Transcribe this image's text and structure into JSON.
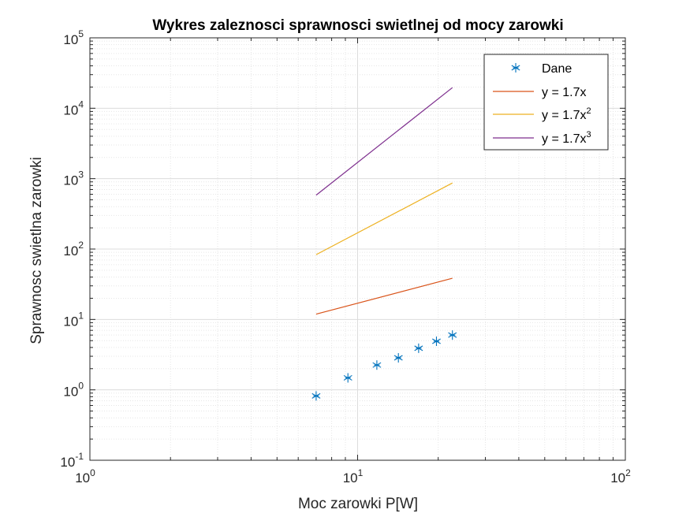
{
  "chart_data": {
    "type": "line",
    "title": "Wykres zaleznosci sprawnosci swietlnej od mocy zarowki",
    "xlabel": "Moc zarowki P[W]",
    "ylabel": "Sprawnosc swietlna zarowki",
    "xscale": "log",
    "yscale": "log",
    "xlim": [
      1,
      100
    ],
    "ylim": [
      0.1,
      100000
    ],
    "grid": true,
    "x_ticks": [
      {
        "base": "10",
        "exp": "0",
        "value": 1
      },
      {
        "base": "10",
        "exp": "1",
        "value": 10
      },
      {
        "base": "10",
        "exp": "2",
        "value": 100
      }
    ],
    "y_ticks": [
      {
        "base": "10",
        "exp": "-1",
        "value": 0.1
      },
      {
        "base": "10",
        "exp": "0",
        "value": 1
      },
      {
        "base": "10",
        "exp": "1",
        "value": 10
      },
      {
        "base": "10",
        "exp": "2",
        "value": 100
      },
      {
        "base": "10",
        "exp": "3",
        "value": 1000
      },
      {
        "base": "10",
        "exp": "4",
        "value": 10000
      },
      {
        "base": "10",
        "exp": "5",
        "value": 100000
      }
    ],
    "legend_position": "top-right",
    "series": [
      {
        "name": "Dane",
        "style": "marker",
        "marker": "*",
        "color": "#0072BD",
        "x": [
          7,
          9.2,
          11.8,
          14.2,
          16.9,
          19.7,
          22.6
        ],
        "y": [
          0.82,
          1.48,
          2.25,
          2.85,
          3.9,
          4.9,
          6.0
        ]
      },
      {
        "name": "y = 1.7x",
        "name_base": "y = 1.7x",
        "name_sup": "",
        "style": "line",
        "color": "#D95319",
        "x": [
          7,
          22.6
        ],
        "y": [
          11.9,
          38.4
        ]
      },
      {
        "name": "y = 1.7x2",
        "name_base": "y = 1.7x",
        "name_sup": "2",
        "style": "line",
        "color": "#EDB120",
        "x": [
          7,
          22.6
        ],
        "y": [
          83.3,
          868
        ]
      },
      {
        "name": "y = 1.7x3",
        "name_base": "y = 1.7x",
        "name_sup": "3",
        "style": "line",
        "color": "#7E2F8E",
        "x": [
          7,
          22.6
        ],
        "y": [
          583,
          19625
        ]
      }
    ]
  }
}
